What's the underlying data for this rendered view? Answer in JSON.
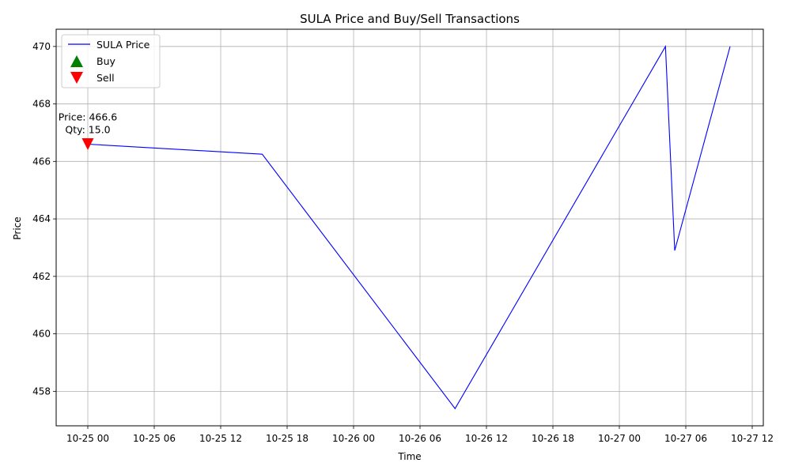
{
  "chart_data": {
    "type": "line",
    "title": "SULA Price and Buy/Sell Transactions",
    "xlabel": "Time",
    "ylabel": "Price",
    "x_tick_labels": [
      "10-25 00",
      "10-25 06",
      "10-25 12",
      "10-25 18",
      "10-26 00",
      "10-26 06",
      "10-26 12",
      "10-26 18",
      "10-27 00",
      "10-27 06",
      "10-27 12"
    ],
    "y_ticks": [
      458,
      460,
      462,
      464,
      466,
      468,
      470
    ],
    "ylim": [
      456.8,
      470.6
    ],
    "grid": true,
    "legend_position": "top-left",
    "series": [
      {
        "name": "SULA Price",
        "color": "#0000ff",
        "x": [
          "10-25 00:00",
          "10-25 15:45",
          "10-26 09:10",
          "10-27 04:10",
          "10-27 05:00",
          "10-27 10:00"
        ],
        "y": [
          466.6,
          466.25,
          457.4,
          470.0,
          462.9,
          470.0
        ]
      }
    ],
    "markers": [
      {
        "name": "Buy",
        "color": "#008000",
        "shape": "triangle-up",
        "points": []
      },
      {
        "name": "Sell",
        "color": "#ff0000",
        "shape": "triangle-down",
        "points": [
          {
            "x": "10-25 00:00",
            "y": 466.6
          }
        ]
      }
    ],
    "annotations": [
      {
        "x": "10-25 00:00",
        "y": 466.6,
        "line1": "Price: 466.6",
        "line2": "Qty: 15.0"
      }
    ]
  }
}
